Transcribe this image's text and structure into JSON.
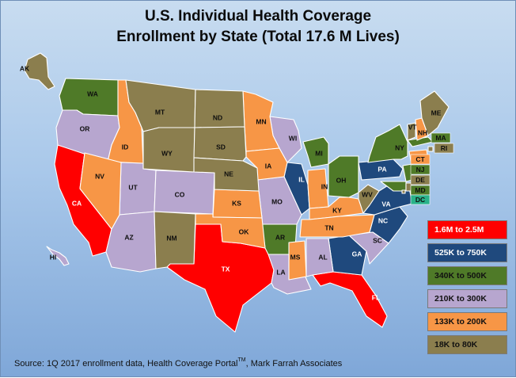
{
  "title": {
    "line1": "U.S. Individual Health Coverage",
    "line2": "Enrollment by State (Total 17.6 M Lives)"
  },
  "colors": {
    "tier1": "#ff0000",
    "tier2": "#1f497d",
    "tier3": "#4f7a28",
    "tier4": "#b7a6cf",
    "tier5": "#f79646",
    "tier6": "#8b7e4e",
    "dc_swatch": "#2ab28a"
  },
  "legend": [
    {
      "label": "1.6M to 2.5M",
      "tier": "tier1",
      "text_color": "#ffffff"
    },
    {
      "label": "525K to 750K",
      "tier": "tier2",
      "text_color": "#ffffff"
    },
    {
      "label": "340K to 500K",
      "tier": "tier3",
      "text_color": "#111111"
    },
    {
      "label": "210K to 300K",
      "tier": "tier4",
      "text_color": "#111111"
    },
    {
      "label": "133K to 200K",
      "tier": "tier5",
      "text_color": "#111111"
    },
    {
      "label": "18K to 80K",
      "tier": "tier6",
      "text_color": "#111111"
    }
  ],
  "states": [
    {
      "abbr": "CA",
      "tier": "tier1"
    },
    {
      "abbr": "TX",
      "tier": "tier1"
    },
    {
      "abbr": "FL",
      "tier": "tier1"
    },
    {
      "abbr": "IL",
      "tier": "tier2"
    },
    {
      "abbr": "PA",
      "tier": "tier2"
    },
    {
      "abbr": "NC",
      "tier": "tier2"
    },
    {
      "abbr": "VA",
      "tier": "tier2"
    },
    {
      "abbr": "GA",
      "tier": "tier2"
    },
    {
      "abbr": "WA",
      "tier": "tier3"
    },
    {
      "abbr": "MI",
      "tier": "tier3"
    },
    {
      "abbr": "OH",
      "tier": "tier3"
    },
    {
      "abbr": "NY",
      "tier": "tier3"
    },
    {
      "abbr": "AR",
      "tier": "tier3"
    },
    {
      "abbr": "MA",
      "tier": "tier3"
    },
    {
      "abbr": "NJ",
      "tier": "tier3"
    },
    {
      "abbr": "MD",
      "tier": "tier3"
    },
    {
      "abbr": "OR",
      "tier": "tier4"
    },
    {
      "abbr": "UT",
      "tier": "tier4"
    },
    {
      "abbr": "CO",
      "tier": "tier4"
    },
    {
      "abbr": "AZ",
      "tier": "tier4"
    },
    {
      "abbr": "WI",
      "tier": "tier4"
    },
    {
      "abbr": "MO",
      "tier": "tier4"
    },
    {
      "abbr": "LA",
      "tier": "tier4"
    },
    {
      "abbr": "AL",
      "tier": "tier4"
    },
    {
      "abbr": "SC",
      "tier": "tier4"
    },
    {
      "abbr": "HI",
      "tier": "tier4"
    },
    {
      "abbr": "ID",
      "tier": "tier5"
    },
    {
      "abbr": "NV",
      "tier": "tier5"
    },
    {
      "abbr": "MN",
      "tier": "tier5"
    },
    {
      "abbr": "IA",
      "tier": "tier5"
    },
    {
      "abbr": "KS",
      "tier": "tier5"
    },
    {
      "abbr": "OK",
      "tier": "tier5"
    },
    {
      "abbr": "IN",
      "tier": "tier5"
    },
    {
      "abbr": "KY",
      "tier": "tier5"
    },
    {
      "abbr": "TN",
      "tier": "tier5"
    },
    {
      "abbr": "MS",
      "tier": "tier5"
    },
    {
      "abbr": "NH",
      "tier": "tier5"
    },
    {
      "abbr": "CT",
      "tier": "tier5"
    },
    {
      "abbr": "AK",
      "tier": "tier6"
    },
    {
      "abbr": "MT",
      "tier": "tier6"
    },
    {
      "abbr": "WY",
      "tier": "tier6"
    },
    {
      "abbr": "ND",
      "tier": "tier6"
    },
    {
      "abbr": "SD",
      "tier": "tier6"
    },
    {
      "abbr": "NE",
      "tier": "tier6"
    },
    {
      "abbr": "NM",
      "tier": "tier6"
    },
    {
      "abbr": "WV",
      "tier": "tier6"
    },
    {
      "abbr": "ME",
      "tier": "tier6"
    },
    {
      "abbr": "VT",
      "tier": "tier6"
    },
    {
      "abbr": "RI",
      "tier": "tier6"
    },
    {
      "abbr": "DE",
      "tier": "tier6"
    },
    {
      "abbr": "DC",
      "tier": "tier6"
    }
  ],
  "source": {
    "prefix": "Source: 1Q 2017 enrollment data, Health Coverage Portal",
    "tm": "TM",
    "suffix": ", Mark Farrah Associates"
  }
}
